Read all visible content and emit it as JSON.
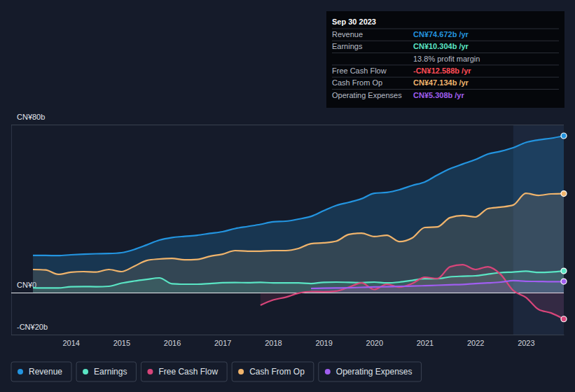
{
  "chart_data": {
    "type": "area",
    "x": [
      2013.25,
      2013.5,
      2013.75,
      2014,
      2014.25,
      2014.5,
      2014.75,
      2015,
      2015.25,
      2015.5,
      2015.75,
      2016,
      2016.25,
      2016.5,
      2016.75,
      2017,
      2017.25,
      2017.5,
      2017.75,
      2018,
      2018.25,
      2018.5,
      2018.75,
      2019,
      2019.25,
      2019.5,
      2019.75,
      2020,
      2020.25,
      2020.5,
      2020.75,
      2021,
      2021.25,
      2021.5,
      2021.75,
      2022,
      2022.25,
      2022.5,
      2022.75,
      2023,
      2023.25,
      2023.5,
      2023.75
    ],
    "series": [
      {
        "name": "Revenue",
        "color": "#2394df",
        "values": [
          17.7,
          17.7,
          17.6,
          18.0,
          18.3,
          18.5,
          18.6,
          19.0,
          20.5,
          22.7,
          25.0,
          26.2,
          26.8,
          27.3,
          28.2,
          29.0,
          30.5,
          31.5,
          32.5,
          33.7,
          34.0,
          35.0,
          36.3,
          39.0,
          41.5,
          43.0,
          44.7,
          47.3,
          47.7,
          49.0,
          51.0,
          52.7,
          56.0,
          59.0,
          61.2,
          63.3,
          66.0,
          67.3,
          69.0,
          71.5,
          72.7,
          73.5,
          74.672
        ]
      },
      {
        "name": "Earnings",
        "color": "#5ae5c4",
        "values": [
          2.3,
          2.2,
          2.2,
          2.8,
          2.9,
          2.8,
          3.0,
          4.5,
          5.5,
          6.3,
          7.0,
          4.2,
          4.0,
          4.0,
          4.3,
          4.7,
          4.8,
          4.7,
          4.9,
          4.6,
          4.6,
          4.6,
          4.3,
          4.9,
          5.0,
          4.9,
          4.7,
          5.0,
          4.6,
          5.0,
          5.8,
          6.6,
          6.6,
          7.5,
          7.8,
          8.0,
          8.8,
          9.5,
          9.8,
          10.2,
          9.6,
          9.8,
          10.304
        ]
      },
      {
        "name": "Free Cash Flow",
        "color": "#d8457a",
        "values": [
          null,
          null,
          null,
          null,
          null,
          null,
          null,
          null,
          null,
          null,
          null,
          null,
          null,
          null,
          null,
          null,
          null,
          null,
          -6.0,
          -3.5,
          -2.2,
          -0.3,
          0.5,
          0.4,
          0.7,
          2.6,
          4.6,
          1.5,
          4.0,
          2.6,
          4.3,
          7.3,
          6.7,
          12.3,
          13.3,
          11.0,
          12.3,
          8.7,
          1.0,
          -2.3,
          -8.0,
          -9.7,
          -12.588
        ]
      },
      {
        "name": "Cash From Op",
        "color": "#f0b46c",
        "values": [
          11.0,
          10.8,
          8.7,
          9.7,
          10.0,
          9.8,
          11.0,
          10.0,
          12.5,
          15.3,
          16.0,
          16.3,
          15.6,
          15.8,
          17.3,
          18.3,
          20.0,
          19.7,
          19.7,
          20.0,
          20.0,
          21.0,
          23.3,
          23.7,
          24.5,
          27.7,
          28.3,
          26.7,
          27.3,
          24.3,
          26.0,
          31.0,
          31.3,
          35.7,
          36.7,
          36.0,
          40.0,
          40.7,
          41.7,
          47.3,
          46.3,
          47.0,
          47.134
        ]
      },
      {
        "name": "Operating Expenses",
        "color": "#a05ef0",
        "values": [
          null,
          null,
          null,
          null,
          null,
          null,
          null,
          null,
          null,
          null,
          null,
          null,
          null,
          null,
          null,
          null,
          null,
          null,
          null,
          null,
          null,
          null,
          2.0,
          2.1,
          2.2,
          2.3,
          2.5,
          2.7,
          2.8,
          3.0,
          3.1,
          3.3,
          3.5,
          3.7,
          3.9,
          4.3,
          4.6,
          5.0,
          5.7,
          5.4,
          5.3,
          5.2,
          5.308
        ]
      }
    ],
    "xlim": [
      2012.82,
      2023.75
    ],
    "xticks": [
      2014,
      2015,
      2016,
      2017,
      2018,
      2019,
      2020,
      2021,
      2022,
      2023
    ],
    "ylim": [
      -20,
      80
    ],
    "yticks": [
      {
        "value": -20,
        "label": "-CN¥20b"
      },
      {
        "value": 0,
        "label": "CN¥0"
      },
      {
        "value": 80,
        "label": "CN¥80b"
      }
    ],
    "grid": true,
    "legend": "bottom",
    "annotations": {
      "title": "Sep 30 2023",
      "rows": [
        {
          "label": "Revenue",
          "text": "CN¥74.672b /yr"
        },
        {
          "label": "Earnings",
          "text": "CN¥10.304b /yr"
        },
        {
          "text": "13.8% profit margin"
        },
        {
          "label": "Free Cash Flow",
          "text": "-CN¥12.588b /yr"
        },
        {
          "label": "Cash From Op",
          "text": "CN¥47.134b /yr"
        },
        {
          "label": "Operating Expenses",
          "text": "CN¥5.308b /yr"
        }
      ]
    }
  }
}
